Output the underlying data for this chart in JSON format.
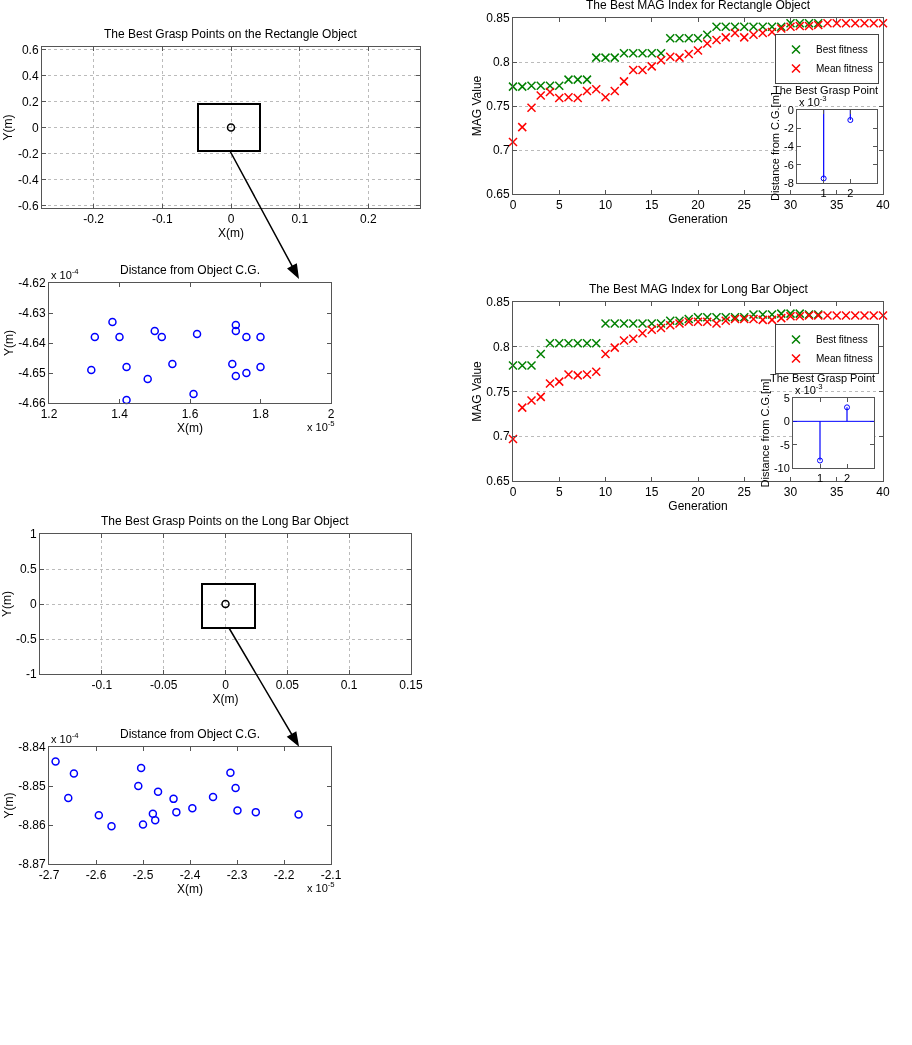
{
  "chart_data": [
    {
      "type": "scatter",
      "title": "The Best Grasp Points on the Rectangle Object",
      "xlabel": "X(m)",
      "ylabel": "Y(m)",
      "xlim": [
        -0.275,
        0.275
      ],
      "xticks": [
        -0.2,
        -0.1,
        0,
        0.1,
        0.2
      ],
      "ylim": [
        -0.62,
        0.62
      ],
      "yticks": [
        -0.6,
        -0.4,
        -0.2,
        0,
        0.2,
        0.4,
        0.6
      ],
      "grid": true,
      "marker": "circle",
      "series": [
        {
          "color": "#000000",
          "x": [
            0
          ],
          "values": [
            0
          ]
        }
      ]
    },
    {
      "type": "scatter",
      "title": "Distance from Object C.G.",
      "xlabel": "X(m)",
      "ylabel": "Y(m)",
      "annotations": [
        "x 10$^{-4}$",
        "x 10$^{-5}$"
      ],
      "xlim": [
        1.2,
        2
      ],
      "xticks": [
        1.2,
        1.4,
        1.6,
        1.8,
        2
      ],
      "ylim": [
        -4.66,
        -4.62
      ],
      "yticks": [
        -4.66,
        -4.65,
        -4.64,
        -4.63,
        -4.62
      ],
      "marker": "circle",
      "series": [
        {
          "color": "#0000ff",
          "x": [
            1.33,
            1.38,
            1.4,
            1.32,
            1.42,
            1.42,
            1.5,
            1.52,
            1.55,
            1.48,
            1.62,
            1.61,
            1.73,
            1.73,
            1.76,
            1.8,
            1.72,
            1.73,
            1.76,
            1.8
          ],
          "values": [
            -4.638,
            -4.633,
            -4.638,
            -4.649,
            -4.648,
            -4.659,
            -4.636,
            -4.638,
            -4.647,
            -4.652,
            -4.637,
            -4.657,
            -4.634,
            -4.636,
            -4.638,
            -4.638,
            -4.647,
            -4.651,
            -4.65,
            -4.648
          ]
        }
      ]
    },
    {
      "type": "scatter",
      "title": "The Best Grasp Points on the Long Bar Object",
      "xlabel": "X(m)",
      "ylabel": "Y(m)",
      "xlim": [
        -0.15,
        0.15
      ],
      "xticks": [
        -0.1,
        -0.05,
        0,
        0.05,
        0.1,
        0.15
      ],
      "ylim": [
        -1,
        1
      ],
      "yticks": [
        -1,
        -0.5,
        0,
        0.5,
        1
      ],
      "grid": true,
      "marker": "circle",
      "series": [
        {
          "color": "#000000",
          "x": [
            0
          ],
          "values": [
            0
          ]
        }
      ]
    },
    {
      "type": "scatter",
      "title": "Distance from Object C.G.",
      "xlabel": "X(m)",
      "ylabel": "Y(m)",
      "annotations": [
        "x 10$^{-4}$",
        "x 10$^{-5}$"
      ],
      "xlim": [
        -2.7,
        -2.1
      ],
      "xticks": [
        -2.7,
        -2.6,
        -2.5,
        -2.4,
        -2.3,
        -2.2,
        -2.1
      ],
      "ylim": [
        -8.87,
        -8.84
      ],
      "yticks": [
        -8.87,
        -8.86,
        -8.85,
        -8.84
      ],
      "marker": "circle",
      "series": [
        {
          "color": "#0000ff",
          "x": [
            -2.686,
            -2.647,
            -2.659,
            -2.594,
            -2.567,
            -2.51,
            -2.504,
            -2.468,
            -2.479,
            -2.474,
            -2.5,
            -2.435,
            -2.429,
            -2.395,
            -2.351,
            -2.314,
            -2.303,
            -2.299,
            -2.26,
            -2.169
          ],
          "values": [
            -8.8437,
            -8.8468,
            -8.8531,
            -8.8575,
            -8.8603,
            -8.85,
            -8.8454,
            -8.8515,
            -8.8571,
            -8.8588,
            -8.8599,
            -8.8533,
            -8.8567,
            -8.8557,
            -8.8528,
            -8.8466,
            -8.8505,
            -8.8563,
            -8.8567,
            -8.8573
          ]
        }
      ]
    },
    {
      "type": "scatter",
      "title": "The Best MAG Index for Rectangle Object",
      "xlabel": "Generation",
      "ylabel": "MAG Value",
      "xlim": [
        0,
        40
      ],
      "xticks": [
        0,
        5,
        10,
        15,
        20,
        25,
        30,
        35,
        40
      ],
      "ylim": [
        0.65,
        0.85
      ],
      "yticks": [
        0.65,
        0.7,
        0.75,
        0.8,
        0.85
      ],
      "grid": "y",
      "legend": "top right",
      "marker": "cross",
      "x": [
        0,
        1,
        2,
        3,
        4,
        5,
        6,
        7,
        8,
        9,
        10,
        11,
        12,
        13,
        14,
        15,
        16,
        17,
        18,
        19,
        20,
        21,
        22,
        23,
        24,
        25,
        26,
        27,
        28,
        29,
        30,
        31,
        32,
        33,
        34,
        35,
        36,
        37,
        38,
        39,
        40
      ],
      "series": [
        {
          "name": "Best fitness",
          "color": "#008000",
          "values": [
            0.772,
            0.772,
            0.773,
            0.773,
            0.773,
            0.773,
            0.78,
            0.78,
            0.78,
            0.805,
            0.805,
            0.805,
            0.81,
            0.81,
            0.81,
            0.81,
            0.81,
            0.827,
            0.827,
            0.827,
            0.827,
            0.831,
            0.84,
            0.84,
            0.84,
            0.84,
            0.84,
            0.84,
            0.84,
            0.84,
            0.844,
            0.844,
            0.844,
            0.844,
            null,
            null,
            null,
            null,
            null,
            null,
            null
          ]
        },
        {
          "name": "Mean fitness",
          "color": "#ff0000",
          "values": [
            0.709,
            0.726,
            0.748,
            0.762,
            0.766,
            0.759,
            0.76,
            0.759,
            0.767,
            0.769,
            0.76,
            0.767,
            0.778,
            0.791,
            0.791,
            0.795,
            0.802,
            0.806,
            0.805,
            0.809,
            0.813,
            0.821,
            0.825,
            0.828,
            0.833,
            0.828,
            0.831,
            0.833,
            0.834,
            0.838,
            0.84,
            0.841,
            0.841,
            0.842,
            0.844,
            0.844,
            0.844,
            0.844,
            0.844,
            0.844,
            0.844
          ]
        }
      ]
    },
    {
      "type": "lollipop",
      "title": "The Best Grasp Point",
      "ylabel": "Distance from C.G.[m]",
      "annotations": [
        "x 10$^{-3}$"
      ],
      "xlim": [
        0,
        3
      ],
      "xticks": [
        1,
        2
      ],
      "ylim": [
        -8,
        0
      ],
      "yticks": [
        -8,
        -6,
        -4,
        -2,
        0
      ],
      "marker": "circle",
      "x": [
        1,
        2
      ],
      "series": [
        {
          "color": "#0000ff",
          "values": [
            -7.5,
            -1.1
          ]
        }
      ]
    },
    {
      "type": "scatter",
      "title": "The Best MAG Index for Long Bar Object",
      "xlabel": "Generation",
      "ylabel": "MAG Value",
      "xlim": [
        0,
        40
      ],
      "xticks": [
        0,
        5,
        10,
        15,
        20,
        25,
        30,
        35,
        40
      ],
      "ylim": [
        0.65,
        0.85
      ],
      "yticks": [
        0.65,
        0.7,
        0.75,
        0.8,
        0.85
      ],
      "grid": "y",
      "legend": "top right",
      "marker": "cross",
      "x": [
        0,
        1,
        2,
        3,
        4,
        5,
        6,
        7,
        8,
        9,
        10,
        11,
        12,
        13,
        14,
        15,
        16,
        17,
        18,
        19,
        20,
        21,
        22,
        23,
        24,
        25,
        26,
        27,
        28,
        29,
        30,
        31,
        32,
        33,
        34,
        35,
        36,
        37,
        38,
        39,
        40
      ],
      "series": [
        {
          "name": "Best fitness",
          "color": "#008000",
          "values": [
            0.779,
            0.779,
            0.779,
            0.792,
            0.804,
            0.804,
            0.804,
            0.804,
            0.804,
            0.804,
            0.826,
            0.826,
            0.826,
            0.826,
            0.826,
            0.826,
            0.826,
            0.829,
            0.829,
            0.831,
            0.833,
            0.833,
            0.833,
            0.833,
            0.833,
            0.833,
            0.836,
            0.836,
            0.836,
            0.837,
            0.837,
            0.837,
            0.836,
            0.836,
            null,
            null,
            null,
            null,
            null,
            null,
            null
          ]
        },
        {
          "name": "Mean fitness",
          "color": "#ff0000",
          "values": [
            0.697,
            0.732,
            0.74,
            0.744,
            0.759,
            0.761,
            0.769,
            0.768,
            0.769,
            0.772,
            0.792,
            0.799,
            0.807,
            0.809,
            0.815,
            0.819,
            0.821,
            0.824,
            0.826,
            0.828,
            0.828,
            0.828,
            0.826,
            0.829,
            0.831,
            0.831,
            0.831,
            0.83,
            0.83,
            0.832,
            0.834,
            0.834,
            0.835,
            0.835,
            0.835,
            0.835,
            0.835,
            0.835,
            0.835,
            0.835,
            0.835
          ]
        }
      ]
    },
    {
      "type": "lollipop",
      "title": "The Best Grasp Point",
      "ylabel": "Distance from C.G.[m]",
      "annotations": [
        "x 10$^{-3}$"
      ],
      "xlim": [
        0,
        3
      ],
      "xticks": [
        1,
        2
      ],
      "ylim": [
        -10,
        5
      ],
      "yticks": [
        -10,
        -5,
        0,
        5
      ],
      "marker": "circle",
      "ref_lines": [
        {
          "axis": "y",
          "value": 0
        }
      ],
      "x": [
        1,
        2
      ],
      "series": [
        {
          "color": "#0000ff",
          "values": [
            -8.4,
            3.0
          ]
        }
      ]
    }
  ]
}
